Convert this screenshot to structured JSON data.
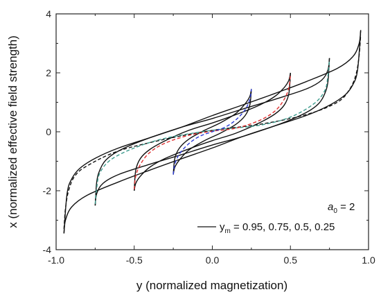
{
  "chart_data": {
    "type": "line",
    "title": "",
    "xlabel": "y (normalized magnetization)",
    "ylabel": "x (normalized effective field strength)",
    "xlim": [
      -1.0,
      1.0
    ],
    "ylim": [
      -4,
      4
    ],
    "x_ticks": [
      -1.0,
      -0.5,
      0.0,
      0.5,
      1.0
    ],
    "x_tick_labels": [
      "-1.0",
      "-0.5",
      "0.0",
      "0.5",
      "1.0"
    ],
    "y_ticks": [
      -4,
      -2,
      0,
      2,
      4
    ],
    "y_tick_labels": [
      "-4",
      "-2",
      "0",
      "2",
      "4"
    ],
    "grid": false,
    "legend": {
      "placement": "bottom-right",
      "param_var": "a",
      "param_sub": "0",
      "param_rest": " = 2",
      "series_var": "y",
      "series_sub": "m",
      "series_rest": " = 0.95, 0.75, 0.5, 0.25"
    },
    "series": [
      {
        "ym": 0.95,
        "style": "solid",
        "color": "#111111",
        "upper": [
          [
            -0.95,
            -3.45
          ],
          [
            -0.93,
            -2.1
          ],
          [
            -0.9,
            -1.6
          ],
          [
            -0.85,
            -1.25
          ],
          [
            -0.75,
            -0.9
          ],
          [
            -0.6,
            -0.55
          ],
          [
            -0.4,
            -0.2
          ],
          [
            -0.2,
            0.15
          ],
          [
            0.0,
            0.55
          ],
          [
            0.2,
            0.92
          ],
          [
            0.4,
            1.3
          ],
          [
            0.6,
            1.7
          ],
          [
            0.8,
            2.15
          ],
          [
            0.9,
            2.55
          ],
          [
            0.94,
            3.0
          ],
          [
            0.95,
            3.45
          ]
        ],
        "lower": [
          [
            0.95,
            3.45
          ],
          [
            0.93,
            2.1
          ],
          [
            0.9,
            1.6
          ],
          [
            0.85,
            1.25
          ],
          [
            0.75,
            0.9
          ],
          [
            0.6,
            0.55
          ],
          [
            0.4,
            0.2
          ],
          [
            0.2,
            -0.15
          ],
          [
            0.0,
            -0.55
          ],
          [
            -0.2,
            -0.92
          ],
          [
            -0.4,
            -1.3
          ],
          [
            -0.6,
            -1.7
          ],
          [
            -0.8,
            -2.15
          ],
          [
            -0.9,
            -2.55
          ],
          [
            -0.94,
            -3.0
          ],
          [
            -0.95,
            -3.45
          ]
        ]
      },
      {
        "ym": 0.75,
        "style": "solid",
        "color": "#111111",
        "upper": [
          [
            -0.75,
            -2.5
          ],
          [
            -0.74,
            -1.7
          ],
          [
            -0.72,
            -1.3
          ],
          [
            -0.68,
            -0.95
          ],
          [
            -0.6,
            -0.65
          ],
          [
            -0.45,
            -0.3
          ],
          [
            -0.2,
            0.15
          ],
          [
            0.0,
            0.45
          ],
          [
            0.2,
            0.78
          ],
          [
            0.4,
            1.1
          ],
          [
            0.6,
            1.45
          ],
          [
            0.7,
            1.75
          ],
          [
            0.74,
            2.1
          ],
          [
            0.75,
            2.5
          ]
        ],
        "lower": [
          [
            0.75,
            2.5
          ],
          [
            0.74,
            1.7
          ],
          [
            0.72,
            1.3
          ],
          [
            0.68,
            0.95
          ],
          [
            0.6,
            0.65
          ],
          [
            0.45,
            0.3
          ],
          [
            0.2,
            -0.15
          ],
          [
            0.0,
            -0.45
          ],
          [
            -0.2,
            -0.78
          ],
          [
            -0.4,
            -1.1
          ],
          [
            -0.6,
            -1.45
          ],
          [
            -0.7,
            -1.75
          ],
          [
            -0.74,
            -2.1
          ],
          [
            -0.75,
            -2.5
          ]
        ]
      },
      {
        "ym": 0.5,
        "style": "solid",
        "color": "#111111",
        "upper": [
          [
            -0.5,
            -2.0
          ],
          [
            -0.49,
            -1.3
          ],
          [
            -0.46,
            -0.9
          ],
          [
            -0.4,
            -0.6
          ],
          [
            -0.3,
            -0.3
          ],
          [
            -0.15,
            0.05
          ],
          [
            0.0,
            0.3
          ],
          [
            0.15,
            0.58
          ],
          [
            0.3,
            0.9
          ],
          [
            0.4,
            1.2
          ],
          [
            0.46,
            1.5
          ],
          [
            0.49,
            1.75
          ],
          [
            0.5,
            2.0
          ]
        ],
        "lower": [
          [
            0.5,
            2.0
          ],
          [
            0.49,
            1.3
          ],
          [
            0.46,
            0.9
          ],
          [
            0.4,
            0.6
          ],
          [
            0.3,
            0.3
          ],
          [
            0.15,
            -0.05
          ],
          [
            0.0,
            -0.3
          ],
          [
            -0.15,
            -0.58
          ],
          [
            -0.3,
            -0.9
          ],
          [
            -0.4,
            -1.2
          ],
          [
            -0.46,
            -1.5
          ],
          [
            -0.49,
            -1.75
          ],
          [
            -0.5,
            -2.0
          ]
        ]
      },
      {
        "ym": 0.25,
        "style": "solid",
        "color": "#111111",
        "upper": [
          [
            -0.25,
            -1.45
          ],
          [
            -0.24,
            -0.9
          ],
          [
            -0.21,
            -0.55
          ],
          [
            -0.15,
            -0.25
          ],
          [
            -0.05,
            0.05
          ],
          [
            0.05,
            0.3
          ],
          [
            0.15,
            0.62
          ],
          [
            0.21,
            0.95
          ],
          [
            0.24,
            1.2
          ],
          [
            0.25,
            1.45
          ]
        ],
        "lower": [
          [
            0.25,
            1.45
          ],
          [
            0.24,
            0.9
          ],
          [
            0.21,
            0.55
          ],
          [
            0.15,
            0.25
          ],
          [
            0.05,
            -0.05
          ],
          [
            -0.05,
            -0.3
          ],
          [
            -0.15,
            -0.62
          ],
          [
            -0.21,
            -0.95
          ],
          [
            -0.24,
            -1.2
          ],
          [
            -0.25,
            -1.45
          ]
        ]
      }
    ],
    "dashed_series": [
      {
        "color": "#111111",
        "points": [
          [
            -0.95,
            -3.3
          ],
          [
            -0.94,
            -2.6
          ],
          [
            -0.92,
            -2.0
          ],
          [
            -0.88,
            -1.5
          ],
          [
            -0.8,
            -1.15
          ],
          [
            -0.6,
            -0.65
          ],
          [
            -0.3,
            -0.25
          ],
          [
            0.0,
            0.05
          ],
          [
            0.3,
            0.25
          ],
          [
            0.6,
            0.58
          ],
          [
            0.8,
            1.0
          ],
          [
            0.88,
            1.45
          ],
          [
            0.92,
            1.95
          ],
          [
            0.94,
            2.6
          ],
          [
            0.95,
            3.3
          ]
        ]
      },
      {
        "color": "#3a9a8c",
        "points": [
          [
            -0.75,
            -2.45
          ],
          [
            -0.74,
            -1.9
          ],
          [
            -0.72,
            -1.4
          ],
          [
            -0.65,
            -0.95
          ],
          [
            -0.5,
            -0.55
          ],
          [
            -0.3,
            -0.22
          ],
          [
            0.0,
            0.05
          ],
          [
            0.3,
            0.22
          ],
          [
            0.5,
            0.5
          ],
          [
            0.65,
            0.95
          ],
          [
            0.72,
            1.4
          ],
          [
            0.74,
            1.9
          ],
          [
            0.75,
            2.45
          ]
        ]
      },
      {
        "color": "#e03030",
        "points": [
          [
            -0.5,
            -1.95
          ],
          [
            -0.49,
            -1.5
          ],
          [
            -0.46,
            -1.1
          ],
          [
            -0.4,
            -0.7
          ],
          [
            -0.3,
            -0.38
          ],
          [
            -0.15,
            -0.12
          ],
          [
            0.0,
            0.02
          ],
          [
            0.15,
            0.12
          ],
          [
            0.3,
            0.38
          ],
          [
            0.4,
            0.7
          ],
          [
            0.46,
            1.1
          ],
          [
            0.49,
            1.5
          ],
          [
            0.5,
            1.95
          ]
        ]
      },
      {
        "color": "#2a3ad8",
        "points": [
          [
            -0.25,
            -1.45
          ],
          [
            -0.24,
            -1.1
          ],
          [
            -0.21,
            -0.75
          ],
          [
            -0.15,
            -0.4
          ],
          [
            -0.08,
            -0.15
          ],
          [
            0.0,
            0.0
          ],
          [
            0.08,
            0.15
          ],
          [
            0.15,
            0.4
          ],
          [
            0.21,
            0.75
          ],
          [
            0.24,
            1.1
          ],
          [
            0.25,
            1.45
          ]
        ]
      }
    ]
  }
}
